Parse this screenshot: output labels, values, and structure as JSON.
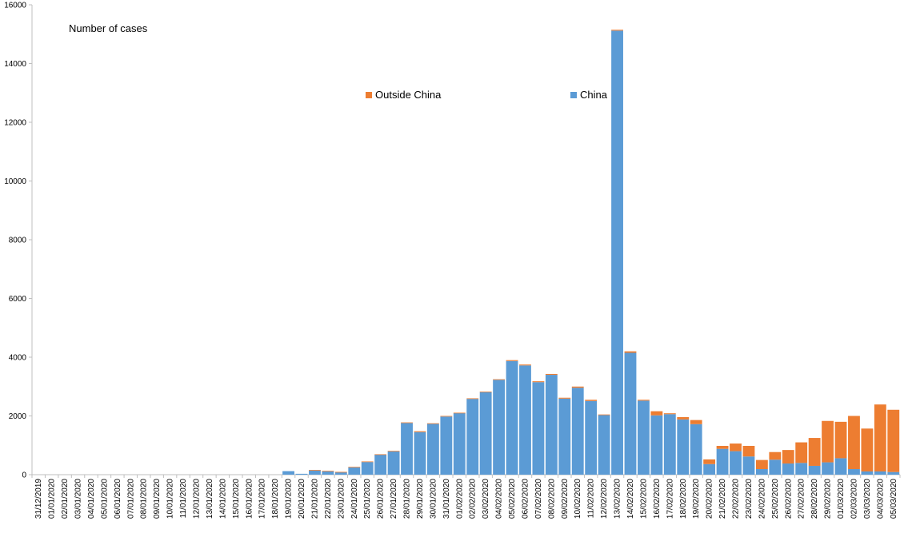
{
  "chart_data": {
    "type": "bar",
    "stacked": true,
    "title": "Number of cases",
    "xlabel": "",
    "ylabel": "",
    "ylim": [
      0,
      16000
    ],
    "yticks": [
      0,
      2000,
      4000,
      6000,
      8000,
      10000,
      12000,
      14000,
      16000
    ],
    "grid": false,
    "legend_position": "top-center",
    "categories": [
      "31/12/2019",
      "01/01/2020",
      "02/01/2020",
      "03/01/2020",
      "04/01/2020",
      "05/01/2020",
      "06/01/2020",
      "07/01/2020",
      "08/01/2020",
      "09/01/2020",
      "10/01/2020",
      "11/01/2020",
      "12/01/2020",
      "13/01/2020",
      "14/01/2020",
      "15/01/2020",
      "16/01/2020",
      "17/01/2020",
      "18/01/2020",
      "19/01/2020",
      "20/01/2020",
      "21/01/2020",
      "22/01/2020",
      "23/01/2020",
      "24/01/2020",
      "25/01/2020",
      "26/01/2020",
      "27/01/2020",
      "28/01/2020",
      "29/01/2020",
      "30/01/2020",
      "31/01/2020",
      "01/02/2020",
      "02/02/2020",
      "03/02/2020",
      "04/02/2020",
      "05/02/2020",
      "06/02/2020",
      "07/02/2020",
      "08/02/2020",
      "09/02/2020",
      "10/02/2020",
      "11/02/2020",
      "12/02/2020",
      "13/02/2020",
      "14/02/2020",
      "15/02/2020",
      "16/02/2020",
      "17/02/2020",
      "18/02/2020",
      "19/02/2020",
      "20/02/2020",
      "21/02/2020",
      "22/02/2020",
      "23/02/2020",
      "24/02/2020",
      "25/02/2020",
      "26/02/2020",
      "27/02/2020",
      "28/02/2020",
      "29/02/2020",
      "01/03/2020",
      "02/03/2020",
      "03/03/2020",
      "04/03/2020",
      "05/03/2020"
    ],
    "series": [
      {
        "name": "China",
        "color": "#5b9bd5",
        "values": [
          0,
          0,
          0,
          0,
          0,
          0,
          0,
          0,
          0,
          0,
          0,
          0,
          0,
          0,
          0,
          0,
          0,
          0,
          0,
          120,
          30,
          150,
          120,
          90,
          250,
          430,
          680,
          790,
          1760,
          1450,
          1730,
          1980,
          2100,
          2580,
          2810,
          3230,
          3870,
          3720,
          3150,
          3400,
          2590,
          2960,
          2510,
          2030,
          15120,
          4150,
          2520,
          2020,
          2060,
          1880,
          1720,
          360,
          880,
          800,
          620,
          190,
          510,
          380,
          400,
          300,
          420,
          560,
          190,
          110,
          110,
          90
        ]
      },
      {
        "name": "Outside China",
        "color": "#ed7d31",
        "values": [
          0,
          0,
          0,
          0,
          0,
          0,
          0,
          0,
          0,
          0,
          0,
          0,
          0,
          0,
          0,
          0,
          0,
          0,
          0,
          0,
          0,
          10,
          10,
          5,
          15,
          20,
          15,
          20,
          20,
          30,
          20,
          20,
          10,
          20,
          20,
          20,
          30,
          30,
          30,
          30,
          30,
          40,
          40,
          20,
          30,
          50,
          30,
          140,
          30,
          80,
          140,
          160,
          100,
          260,
          360,
          310,
          260,
          460,
          700,
          950,
          1410,
          1240,
          1810,
          1460,
          2280,
          2120
        ]
      }
    ]
  }
}
